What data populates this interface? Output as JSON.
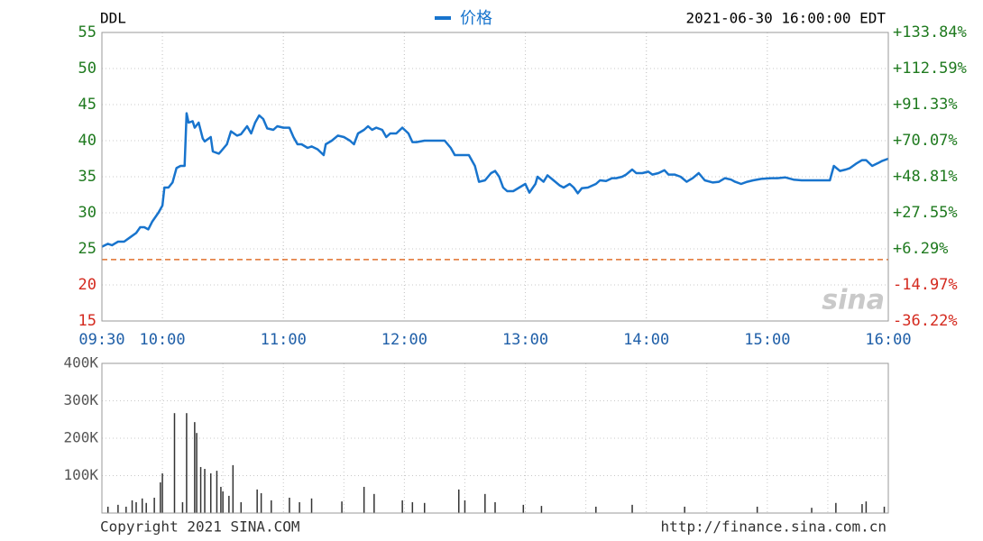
{
  "chart_data": [
    {
      "type": "line",
      "title": "DDL",
      "timestamp": "2021-06-30 16:00:00 EDT",
      "x": [
        "09:30",
        "09:33",
        "09:35",
        "09:38",
        "09:41",
        "09:44",
        "09:47",
        "09:49",
        "09:51",
        "09:53",
        "09:55",
        "09:58",
        "10:00",
        "10:01",
        "10:03",
        "10:05",
        "10:07",
        "10:09",
        "10:11",
        "10:12",
        "10:13",
        "10:15",
        "10:16",
        "10:18",
        "10:20",
        "10:21",
        "10:24",
        "10:25",
        "10:28",
        "10:29",
        "10:32",
        "10:34",
        "10:37",
        "10:39",
        "10:42",
        "10:44",
        "10:46",
        "10:48",
        "10:50",
        "10:52",
        "10:55",
        "10:57",
        "11:00",
        "11:03",
        "11:05",
        "11:07",
        "11:09",
        "11:12",
        "11:14",
        "11:17",
        "11:20",
        "11:21",
        "11:24",
        "11:27",
        "11:30",
        "11:33",
        "11:35",
        "11:37",
        "11:40",
        "11:42",
        "11:44",
        "11:46",
        "11:49",
        "11:51",
        "11:53",
        "11:56",
        "11:59",
        "12:02",
        "12:04",
        "12:06",
        "12:10",
        "12:12",
        "12:16",
        "12:20",
        "12:23",
        "12:25",
        "12:28",
        "12:32",
        "12:35",
        "12:37",
        "12:40",
        "12:43",
        "12:45",
        "12:47",
        "12:49",
        "12:51",
        "12:54",
        "12:57",
        "13:00",
        "13:02",
        "13:05",
        "13:06",
        "13:09",
        "13:11",
        "13:14",
        "13:17",
        "13:19",
        "13:22",
        "13:24",
        "13:26",
        "13:28",
        "13:31",
        "13:35",
        "13:37",
        "13:40",
        "13:43",
        "13:45",
        "13:48",
        "13:50",
        "13:53",
        "13:55",
        "13:58",
        "14:01",
        "14:03",
        "14:06",
        "14:09",
        "14:11",
        "14:14",
        "14:17",
        "14:20",
        "14:23",
        "14:26",
        "14:29",
        "14:33",
        "14:36",
        "14:39",
        "14:42",
        "14:44",
        "14:47",
        "14:50",
        "14:53",
        "14:57",
        "15:02",
        "15:05",
        "15:09",
        "15:13",
        "15:17",
        "15:22",
        "15:26",
        "15:31",
        "15:33",
        "15:36",
        "15:39",
        "15:41",
        "15:44",
        "15:47",
        "15:49",
        "15:52",
        "15:55",
        "15:57",
        "16:00"
      ],
      "series": [
        {
          "name": "价格",
          "color": "#1874cd",
          "values": [
            25.3,
            25.7,
            25.5,
            26.0,
            26.0,
            26.6,
            27.2,
            28.0,
            28.0,
            27.7,
            28.8,
            30.0,
            31.0,
            33.5,
            33.5,
            34.2,
            36.2,
            36.5,
            36.5,
            43.8,
            42.5,
            42.7,
            41.8,
            42.5,
            40.3,
            39.9,
            40.5,
            38.5,
            38.2,
            38.5,
            39.5,
            41.3,
            40.7,
            40.9,
            42.0,
            41.0,
            42.5,
            43.5,
            43.0,
            41.7,
            41.5,
            42.0,
            41.8,
            41.8,
            40.5,
            39.5,
            39.5,
            39.0,
            39.2,
            38.8,
            38.0,
            39.5,
            40.0,
            40.7,
            40.5,
            40.0,
            39.5,
            41.0,
            41.5,
            42.0,
            41.5,
            41.8,
            41.5,
            40.5,
            41.0,
            41.0,
            41.8,
            41.0,
            39.8,
            39.8,
            40.0,
            40.0,
            40.0,
            40.0,
            39.0,
            38.0,
            38.0,
            38.0,
            36.5,
            34.3,
            34.5,
            35.5,
            35.8,
            35.0,
            33.5,
            33.0,
            33.0,
            33.5,
            34.0,
            32.8,
            34.0,
            35.0,
            34.3,
            35.2,
            34.5,
            33.8,
            33.5,
            34.0,
            33.5,
            32.7,
            33.4,
            33.5,
            34.0,
            34.5,
            34.4,
            34.8,
            34.8,
            35.0,
            35.3,
            36.0,
            35.5,
            35.5,
            35.7,
            35.3,
            35.5,
            35.9,
            35.3,
            35.3,
            35.0,
            34.3,
            34.8,
            35.5,
            34.5,
            34.2,
            34.3,
            34.8,
            34.6,
            34.3,
            34.0,
            34.3,
            34.5,
            34.7,
            34.8,
            34.8,
            34.9,
            34.6,
            34.5,
            34.5,
            34.5,
            34.5,
            36.5,
            35.8,
            36.0,
            36.2,
            36.8,
            37.3,
            37.3,
            36.5,
            36.9,
            37.2,
            37.5
          ]
        }
      ],
      "xlim": [
        "09:30",
        "16:00"
      ],
      "xticks": [
        "09:30",
        "10:00",
        "11:00",
        "12:00",
        "13:00",
        "14:00",
        "15:00",
        "16:00"
      ],
      "ylim": [
        15,
        55
      ],
      "yticks": [
        15,
        20,
        25,
        30,
        35,
        40,
        45,
        50,
        55
      ],
      "y2lim": [
        -36.22,
        133.84
      ],
      "y2ticks": [
        {
          "value": -36.22,
          "label": "-36.22%"
        },
        {
          "value": -14.97,
          "label": "-14.97%"
        },
        {
          "value": 6.29,
          "label": "+6.29%"
        },
        {
          "value": 27.55,
          "label": "+27.55%"
        },
        {
          "value": 48.81,
          "label": "+48.81%"
        },
        {
          "value": 70.07,
          "label": "+70.07%"
        },
        {
          "value": 91.33,
          "label": "+91.33%"
        },
        {
          "value": 112.59,
          "label": "+112.59%"
        },
        {
          "value": 133.84,
          "label": "+133.84%"
        }
      ],
      "reference_value": 23.52,
      "reference_color": "#e0702c",
      "up_color": "#1f7a1f",
      "down_color": "#d42a1f",
      "x_label_color": "#1f5fa8",
      "grid": true,
      "watermark": "sina"
    },
    {
      "type": "bar",
      "x": [
        "09:33",
        "09:38",
        "09:42",
        "09:45",
        "09:47",
        "09:50",
        "09:52",
        "09:56",
        "09:59",
        "10:00",
        "10:06",
        "10:10",
        "10:12",
        "10:16",
        "10:17",
        "10:19",
        "10:21",
        "10:24",
        "10:27",
        "10:29",
        "10:30",
        "10:33",
        "10:35",
        "10:39",
        "10:47",
        "10:49",
        "10:54",
        "11:03",
        "11:08",
        "11:14",
        "11:29",
        "11:40",
        "11:45",
        "11:59",
        "12:04",
        "12:10",
        "12:27",
        "12:30",
        "12:40",
        "12:45",
        "12:59",
        "13:08",
        "13:35",
        "13:53",
        "14:19",
        "14:55",
        "15:22",
        "15:34",
        "15:47",
        "15:49",
        "15:58"
      ],
      "values": [
        17000,
        22000,
        17000,
        34000,
        29000,
        39000,
        27000,
        41000,
        82000,
        106000,
        267000,
        29000,
        267000,
        243000,
        214000,
        123000,
        118000,
        106000,
        113000,
        70000,
        58000,
        46000,
        128000,
        29000,
        63000,
        53000,
        34000,
        41000,
        29000,
        39000,
        31000,
        70000,
        51000,
        34000,
        29000,
        27000,
        63000,
        34000,
        51000,
        29000,
        22000,
        19000,
        17000,
        22000,
        17000,
        17000,
        14000,
        27000,
        24000,
        31000,
        17000
      ],
      "color": "#333333",
      "xlim": [
        "09:30",
        "16:00"
      ],
      "ylim": [
        0,
        400000
      ],
      "yticks": [
        {
          "value": 100000,
          "label": "100K"
        },
        {
          "value": 200000,
          "label": "200K"
        },
        {
          "value": 300000,
          "label": "300K"
        },
        {
          "value": 400000,
          "label": "400K"
        }
      ],
      "grid": true
    }
  ],
  "footer": {
    "copyright": "Copyright 2021 SINA.COM",
    "url": "http://finance.sina.com.cn"
  }
}
